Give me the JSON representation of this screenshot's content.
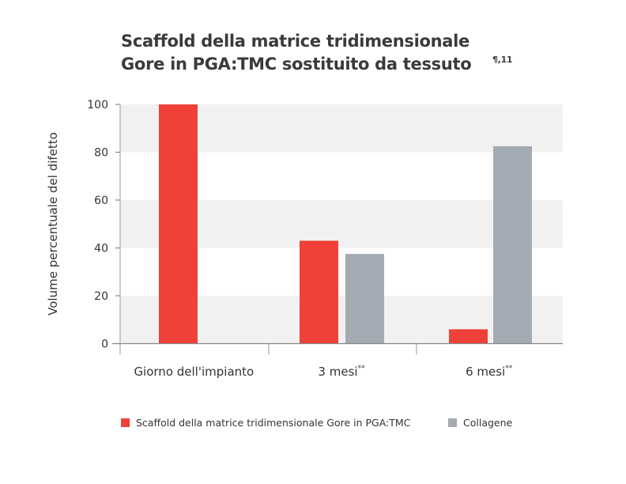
{
  "chart_data": {
    "type": "bar",
    "title": "Scaffold della matrice tridimensionale Gore in PGA:TMC sostituito da tessuto",
    "title_superscript": "¶,11",
    "ylabel": "Volume percentuale del difetto",
    "xlabel": "",
    "ylim": [
      0,
      100
    ],
    "yticks": [
      0,
      20,
      40,
      60,
      80,
      100
    ],
    "grid": "alternating horizontal bands",
    "categories": [
      "Giorno dell'impianto",
      "3 mesi",
      "6 mesi"
    ],
    "category_superscripts": [
      "",
      "**",
      "**"
    ],
    "series": [
      {
        "name": "Scaffold della matrice tridimensionale Gore in PGA:TMC",
        "color": "#ef4137",
        "values": [
          100,
          43,
          6
        ]
      },
      {
        "name": "Collagene",
        "color": "#a4abb2",
        "values": [
          null,
          37.5,
          82.5
        ]
      }
    ],
    "legend_position": "bottom"
  }
}
